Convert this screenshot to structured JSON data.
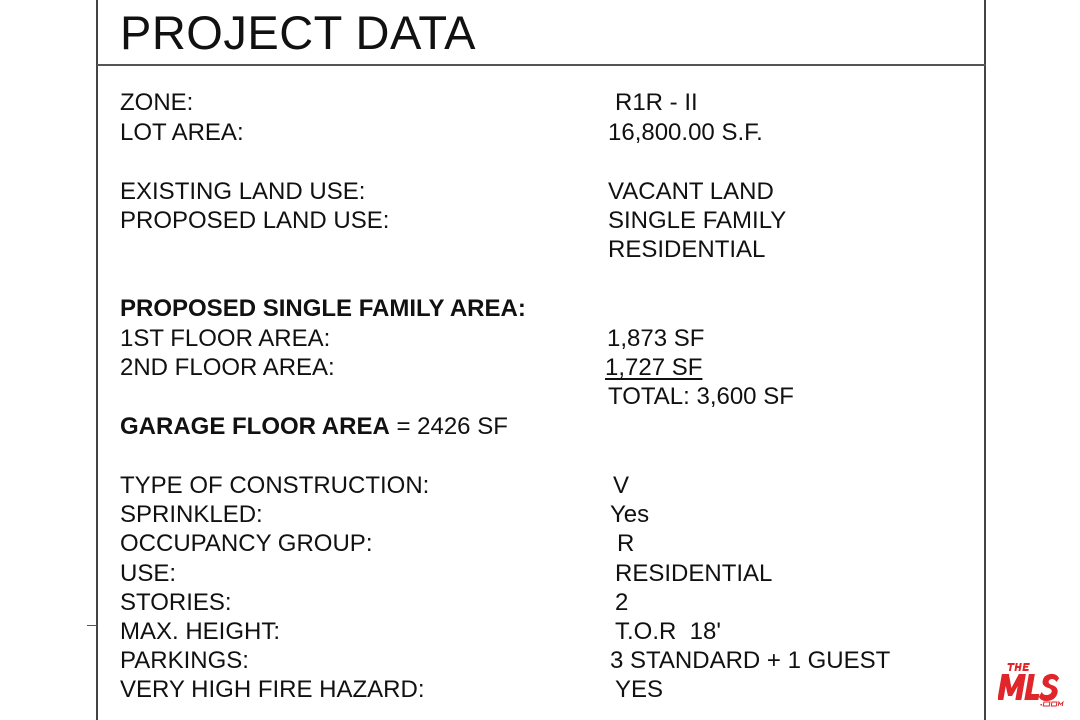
{
  "title": "PROJECT DATA",
  "rows": {
    "zone": {
      "label": "ZONE:",
      "value": "R1R - II"
    },
    "lot_area": {
      "label": "LOT AREA:",
      "value": "16,800.00 S.F."
    },
    "existing_land_use": {
      "label": "EXISTING LAND USE:",
      "value": "VACANT LAND"
    },
    "proposed_land_use": {
      "label": "PROPOSED LAND USE:",
      "value": "SINGLE FAMILY",
      "value2": "RESIDENTIAL"
    },
    "proposed_area_heading": "PROPOSED SINGLE FAMILY AREA:",
    "first_floor": {
      "label": "1ST FLOOR AREA:",
      "value": "1,873 SF"
    },
    "second_floor": {
      "label": "2ND FLOOR AREA:",
      "value": "1,727 SF"
    },
    "total": "TOTAL: 3,600 SF",
    "garage": {
      "label": "GARAGE FLOOR AREA",
      "value": " = 2426 SF"
    },
    "construction": {
      "label": "TYPE OF CONSTRUCTION:",
      "value": "V"
    },
    "sprinkled": {
      "label": "SPRINKLED:",
      "value": "Yes"
    },
    "occupancy": {
      "label": "OCCUPANCY GROUP:",
      "value": "R"
    },
    "use": {
      "label": "USE:",
      "value": "RESIDENTIAL"
    },
    "stories": {
      "label": "STORIES:",
      "value": "2"
    },
    "max_height": {
      "label": "MAX. HEIGHT:",
      "value": "T.O.R  18'"
    },
    "parkings": {
      "label": "PARKINGS:",
      "value": "3 STANDARD + 1 GUEST"
    },
    "fire_hazard": {
      "label": "VERY HIGH FIRE HAZARD:",
      "value": "YES"
    }
  },
  "watermark": {
    "text": "THE MLS .COM",
    "color": "#e0262b"
  }
}
